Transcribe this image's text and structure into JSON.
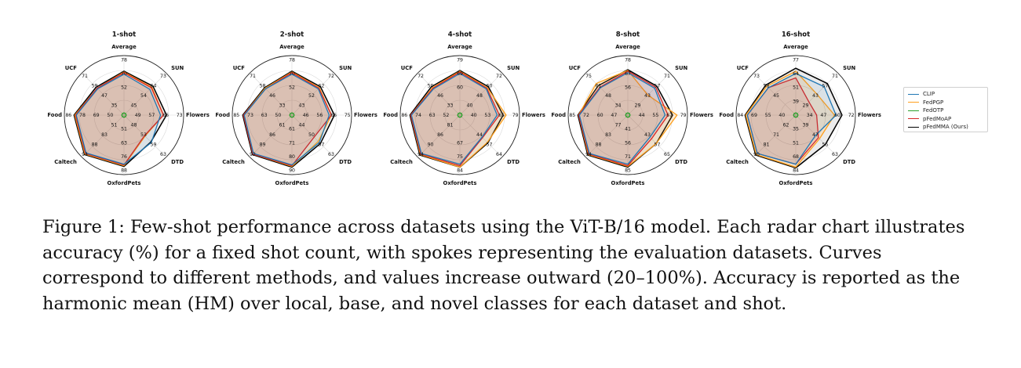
{
  "chart_data": [
    {
      "type": "radar",
      "title": "1-shot",
      "axes": [
        "Average",
        "SUN",
        "Flowers",
        "DTD",
        "OxfordPets",
        "Caltech",
        "Food",
        "UCF"
      ],
      "ring_labels": [
        [
          "52",
          "70",
          "78"
        ],
        [
          "45",
          "54",
          "64",
          "73"
        ],
        [
          "49",
          "57",
          "66",
          "73"
        ],
        [
          "48",
          "53",
          "59",
          "63"
        ],
        [
          "51",
          "63",
          "76",
          "88"
        ],
        [
          "51",
          "83",
          "88",
          "94"
        ],
        [
          "50",
          "69",
          "78",
          "86"
        ],
        [
          "35",
          "47",
          "59",
          "71"
        ]
      ],
      "series": [
        {
          "name": "CLIP",
          "values": [
            75,
            69,
            69,
            72,
            86,
            92,
            84,
            70
          ]
        },
        {
          "name": "FedPGP",
          "values": [
            78,
            73,
            73,
            60,
            88,
            94,
            86,
            71
          ]
        },
        {
          "name": "FedOTP",
          "values": [
            23,
            23,
            23,
            23,
            23,
            23,
            23,
            23
          ]
        },
        {
          "name": "pFedMoAP",
          "values": [
            77,
            72,
            73,
            59,
            87,
            93,
            85,
            71
          ]
        },
        {
          "name": "pFedMMA (Ours)",
          "values": [
            79,
            75,
            77,
            71,
            89,
            95,
            87,
            73
          ]
        }
      ]
    },
    {
      "type": "radar",
      "title": "2-shot",
      "axes": [
        "Average",
        "SUN",
        "Flowers",
        "DTD",
        "OxfordPets",
        "Caltech",
        "Food",
        "UCF"
      ],
      "ring_labels": [
        [
          "52",
          "70",
          "78"
        ],
        [
          "43",
          "52",
          "62",
          "72"
        ],
        [
          "46",
          "56",
          "66",
          "75"
        ],
        [
          "44",
          "50",
          "57",
          "63"
        ],
        [
          "61",
          "71",
          "80",
          "90"
        ],
        [
          "61",
          "86",
          "89",
          "92"
        ],
        [
          "50",
          "63",
          "73",
          "85"
        ],
        [
          "33",
          "46",
          "58",
          "71"
        ]
      ],
      "series": [
        {
          "name": "CLIP",
          "values": [
            75,
            70,
            70,
            72,
            87,
            93,
            84,
            70
          ]
        },
        {
          "name": "FedPGP",
          "values": [
            78,
            72,
            73,
            70,
            89,
            94,
            85,
            71
          ]
        },
        {
          "name": "FedOTP",
          "values": [
            23,
            23,
            23,
            23,
            23,
            23,
            23,
            23
          ]
        },
        {
          "name": "pFedMoAP",
          "values": [
            77,
            71,
            73,
            62,
            88,
            94,
            85,
            70
          ]
        },
        {
          "name": "pFedMMA (Ours)",
          "values": [
            79,
            74,
            77,
            74,
            90,
            95,
            86,
            72
          ]
        }
      ]
    },
    {
      "type": "radar",
      "title": "4-shot",
      "axes": [
        "Average",
        "SUN",
        "Flowers",
        "DTD",
        "OxfordPets",
        "Caltech",
        "Food",
        "UCF"
      ],
      "ring_labels": [
        [
          "60",
          "69",
          "79"
        ],
        [
          "40",
          "48",
          "60",
          "72"
        ],
        [
          "40",
          "53",
          "65",
          "79"
        ],
        [
          "44",
          "57",
          "64"
        ],
        [
          "67",
          "75",
          "84"
        ],
        [
          "81",
          "86",
          "90",
          "94"
        ],
        [
          "52",
          "63",
          "74",
          "86"
        ],
        [
          "33",
          "46",
          "59",
          "72"
        ]
      ],
      "series": [
        {
          "name": "CLIP",
          "values": [
            76,
            70,
            70,
            62,
            86,
            93,
            85,
            70
          ]
        },
        {
          "name": "FedPGP",
          "values": [
            79,
            72,
            82,
            72,
            90,
            95,
            86,
            72
          ]
        },
        {
          "name": "FedOTP",
          "values": [
            23,
            23,
            23,
            23,
            23,
            23,
            23,
            23
          ]
        },
        {
          "name": "pFedMoAP",
          "values": [
            78,
            71,
            73,
            63,
            88,
            94,
            86,
            71
          ]
        },
        {
          "name": "pFedMMA (Ours)",
          "values": [
            80,
            74,
            78,
            73,
            90,
            96,
            87,
            74
          ]
        }
      ]
    },
    {
      "type": "radar",
      "title": "8-shot",
      "axes": [
        "Average",
        "SUN",
        "Flowers",
        "DTD",
        "OxfordPets",
        "Caltech",
        "Food",
        "UCF"
      ],
      "ring_labels": [
        [
          "56",
          "67",
          "78"
        ],
        [
          "29",
          "43",
          "57",
          "71"
        ],
        [
          "44",
          "55",
          "67",
          "79"
        ],
        [
          "43",
          "57",
          "65"
        ],
        [
          "41",
          "56",
          "71",
          "85"
        ],
        [
          "77",
          "83",
          "88",
          "94"
        ],
        [
          "47",
          "60",
          "72",
          "85"
        ],
        [
          "34",
          "48",
          "61",
          "75"
        ]
      ],
      "series": [
        {
          "name": "CLIP",
          "values": [
            77,
            71,
            70,
            62,
            86,
            93,
            85,
            72
          ]
        },
        {
          "name": "FedPGP",
          "values": [
            80,
            58,
            86,
            74,
            89,
            95,
            86,
            80
          ]
        },
        {
          "name": "FedOTP",
          "values": [
            23,
            23,
            23,
            23,
            23,
            23,
            23,
            23
          ]
        },
        {
          "name": "pFedMoAP",
          "values": [
            79,
            73,
            74,
            65,
            88,
            94,
            86,
            73
          ]
        },
        {
          "name": "pFedMMA (Ours)",
          "values": [
            81,
            75,
            80,
            74,
            90,
            96,
            87,
            76
          ]
        }
      ]
    },
    {
      "type": "radar",
      "title": "16-shot",
      "axes": [
        "Average",
        "SUN",
        "Flowers",
        "DTD",
        "OxfordPets",
        "Caltech",
        "Food",
        "UCF"
      ],
      "ring_labels": [
        [
          "39",
          "51",
          "64",
          "77"
        ],
        [
          "29",
          "43",
          "57",
          "71"
        ],
        [
          "34",
          "47",
          "60",
          "72"
        ],
        [
          "39",
          "47",
          "55",
          "63"
        ],
        [
          "35",
          "51",
          "68",
          "84"
        ],
        [
          "62",
          "71",
          "81",
          "90"
        ],
        [
          "40",
          "55",
          "69",
          "84"
        ],
        [
          "45",
          "58",
          "73"
        ]
      ],
      "series": [
        {
          "name": "CLIP",
          "values": [
            76,
            74,
            74,
            58,
            86,
            93,
            85,
            72
          ]
        },
        {
          "name": "FedPGP",
          "values": [
            79,
            60,
            72,
            65,
            90,
            95,
            87,
            75
          ]
        },
        {
          "name": "FedOTP",
          "values": [
            23,
            23,
            23,
            23,
            23,
            23,
            23,
            23
          ]
        },
        {
          "name": "pFedMoAP",
          "values": [
            70,
            45,
            48,
            63,
            86,
            93,
            85,
            72
          ]
        },
        {
          "name": "pFedMMA (Ours)",
          "values": [
            83,
            80,
            82,
            76,
            91,
            96,
            88,
            77
          ]
        }
      ]
    }
  ],
  "legend": [
    {
      "name": "CLIP",
      "color": "#1f77b4"
    },
    {
      "name": "FedPGP",
      "color": "#ff9f1c"
    },
    {
      "name": "FedOTP",
      "color": "#2ca02c"
    },
    {
      "name": "pFedMoAP",
      "color": "#d62728"
    },
    {
      "name": "pFedMMA (Ours)",
      "color": "#000000"
    }
  ],
  "caption": "Figure 1: Few-shot performance across datasets using the ViT-B/16 model. Each radar chart illustrates accuracy (%) for a fixed shot count, with spokes representing the evaluation datasets. Curves correspond to different methods, and values increase outward (20–100%). Accuracy is reported as the harmonic mean (HM) over local, base, and novel classes for each dataset and shot."
}
